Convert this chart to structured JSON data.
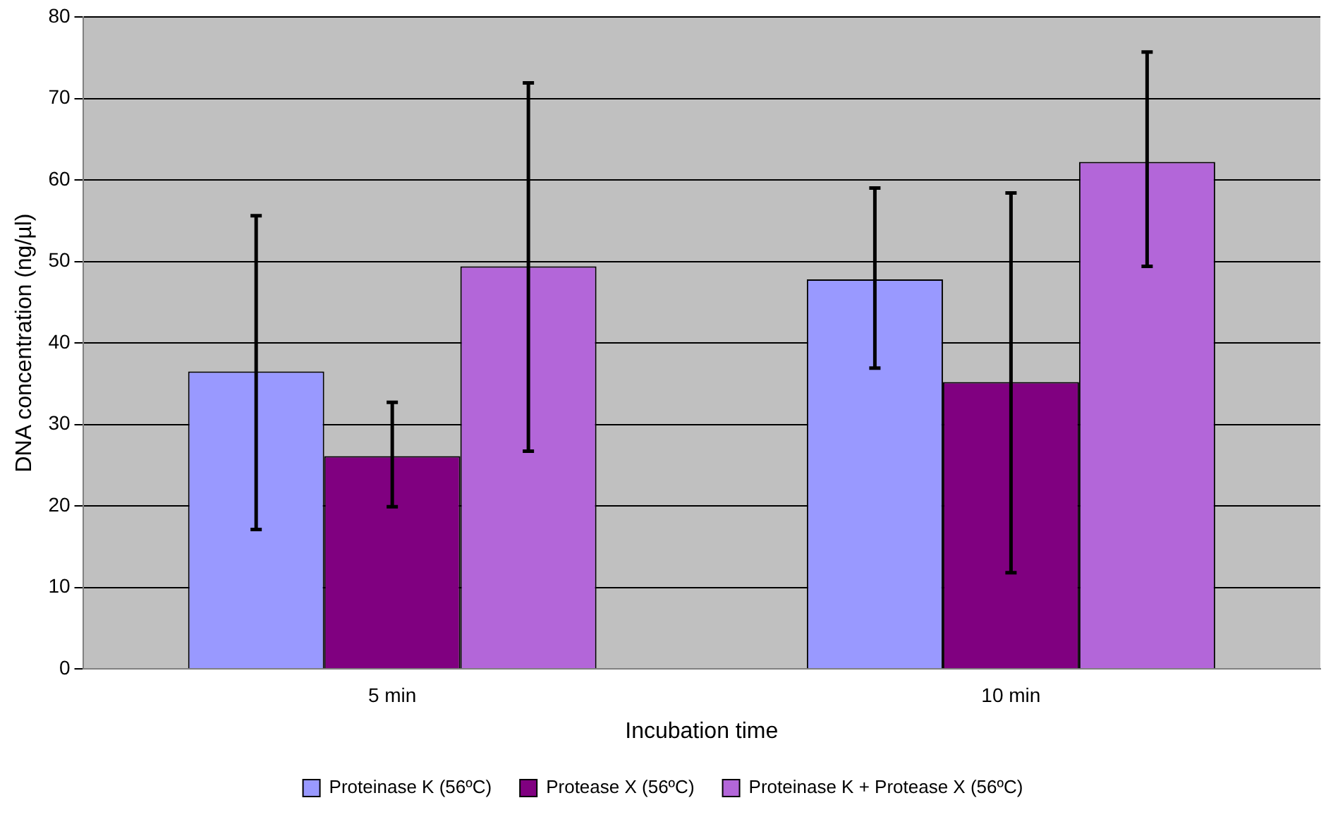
{
  "chart_data": {
    "type": "bar",
    "xlabel": "Incubation time",
    "ylabel": "DNA concentration (ng/µl)",
    "categories": [
      "5 min",
      "10 min"
    ],
    "series": [
      {
        "name": "Proteinase K (56ºC)",
        "color": "#9999ff",
        "values": [
          36.5,
          47.8
        ],
        "errors": [
          [
            17.1,
            55.6
          ],
          [
            36.9,
            59.0
          ]
        ]
      },
      {
        "name": "Protease X (56ºC)",
        "color": "#800080",
        "values": [
          26.1,
          35.2
        ],
        "errors": [
          [
            19.9,
            32.7
          ],
          [
            11.8,
            58.4
          ]
        ]
      },
      {
        "name": "Proteinase K + Protease X (56ºC)",
        "color": "#b366d9",
        "values": [
          49.4,
          62.2
        ],
        "errors": [
          [
            26.7,
            71.9
          ],
          [
            49.4,
            75.7
          ]
        ]
      }
    ],
    "ylim": [
      0,
      80
    ],
    "yticks": [
      0,
      10,
      20,
      30,
      40,
      50,
      60,
      70,
      80
    ],
    "grid": "y",
    "legend": "bottom"
  }
}
